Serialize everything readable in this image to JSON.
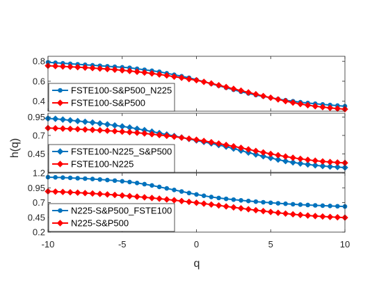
{
  "chart_data": [
    {
      "type": "line",
      "panel": "top",
      "xlim": [
        -10,
        10
      ],
      "ylim": [
        0.3,
        0.85
      ],
      "yticks": [
        "0.4",
        "0.6",
        "0.8"
      ],
      "x": [
        -10,
        -9.5,
        -9,
        -8.5,
        -8,
        -7.5,
        -7,
        -6.5,
        -6,
        -5.5,
        -5,
        -4.5,
        -4,
        -3.5,
        -3,
        -2.5,
        -2,
        -1.5,
        -1,
        -0.5,
        0,
        0.5,
        1,
        1.5,
        2,
        2.5,
        3,
        3.5,
        4,
        4.5,
        5,
        5.5,
        6,
        6.5,
        7,
        7.5,
        8,
        8.5,
        9,
        9.5,
        10
      ],
      "legend_position": "bottom-left",
      "series": [
        {
          "name": "FSTE100-S&P500_N225",
          "color": "#0072bd",
          "marker": "circle",
          "values": [
            0.79,
            0.785,
            0.78,
            0.775,
            0.77,
            0.765,
            0.76,
            0.755,
            0.75,
            0.745,
            0.74,
            0.735,
            0.725,
            0.715,
            0.705,
            0.695,
            0.68,
            0.665,
            0.65,
            0.635,
            0.615,
            0.595,
            0.575,
            0.555,
            0.535,
            0.515,
            0.495,
            0.478,
            0.462,
            0.448,
            0.435,
            0.422,
            0.41,
            0.4,
            0.39,
            0.382,
            0.375,
            0.368,
            0.362,
            0.356,
            0.35
          ]
        },
        {
          "name": "FSTE100-S&P500",
          "color": "#ff0000",
          "marker": "diamond",
          "values": [
            0.755,
            0.752,
            0.748,
            0.745,
            0.741,
            0.737,
            0.732,
            0.727,
            0.722,
            0.716,
            0.71,
            0.703,
            0.695,
            0.687,
            0.678,
            0.668,
            0.658,
            0.646,
            0.635,
            0.622,
            0.61,
            0.594,
            0.578,
            0.56,
            0.542,
            0.524,
            0.506,
            0.488,
            0.47,
            0.452,
            0.435,
            0.418,
            0.401,
            0.386,
            0.372,
            0.36,
            0.35,
            0.341,
            0.333,
            0.326,
            0.32
          ]
        }
      ]
    },
    {
      "type": "line",
      "panel": "middle",
      "xlim": [
        -10,
        10
      ],
      "ylim": [
        0.2,
        1.0
      ],
      "yticks": [
        "0.45",
        "0.7",
        "0.95"
      ],
      "x": [
        -10,
        -9.5,
        -9,
        -8.5,
        -8,
        -7.5,
        -7,
        -6.5,
        -6,
        -5.5,
        -5,
        -4.5,
        -4,
        -3.5,
        -3,
        -2.5,
        -2,
        -1.5,
        -1,
        -0.5,
        0,
        0.5,
        1,
        1.5,
        2,
        2.5,
        3,
        3.5,
        4,
        4.5,
        5,
        5.5,
        6,
        6.5,
        7,
        7.5,
        8,
        8.5,
        9,
        9.5,
        10
      ],
      "legend_position": "bottom-left",
      "series": [
        {
          "name": "FSTE100-N225_S&P500",
          "color": "#0072bd",
          "marker": "diamond",
          "values": [
            0.93,
            0.925,
            0.915,
            0.905,
            0.895,
            0.885,
            0.875,
            0.862,
            0.85,
            0.836,
            0.822,
            0.808,
            0.79,
            0.772,
            0.752,
            0.732,
            0.712,
            0.692,
            0.672,
            0.652,
            0.632,
            0.612,
            0.592,
            0.57,
            0.548,
            0.522,
            0.495,
            0.468,
            0.442,
            0.418,
            0.395,
            0.372,
            0.352,
            0.335,
            0.32,
            0.307,
            0.295,
            0.286,
            0.278,
            0.272,
            0.265
          ]
        },
        {
          "name": "FSTE100-N225",
          "color": "#ff0000",
          "marker": "diamond",
          "values": [
            0.8,
            0.797,
            0.793,
            0.789,
            0.785,
            0.78,
            0.775,
            0.77,
            0.764,
            0.758,
            0.751,
            0.744,
            0.736,
            0.727,
            0.717,
            0.706,
            0.695,
            0.683,
            0.67,
            0.656,
            0.641,
            0.625,
            0.608,
            0.59,
            0.571,
            0.552,
            0.532,
            0.511,
            0.49,
            0.47,
            0.45,
            0.432,
            0.414,
            0.398,
            0.383,
            0.37,
            0.358,
            0.348,
            0.34,
            0.333,
            0.328
          ]
        }
      ]
    },
    {
      "type": "line",
      "panel": "bottom",
      "xlim": [
        -10,
        10
      ],
      "ylim": [
        0.2,
        1.2
      ],
      "yticks": [
        "0.2",
        "0.45",
        "0.7",
        "0.95",
        "1.2"
      ],
      "x": [
        -10,
        -9.5,
        -9,
        -8.5,
        -8,
        -7.5,
        -7,
        -6.5,
        -6,
        -5.5,
        -5,
        -4.5,
        -4,
        -3.5,
        -3,
        -2.5,
        -2,
        -1.5,
        -1,
        -0.5,
        0,
        0.5,
        1,
        1.5,
        2,
        2.5,
        3,
        3.5,
        4,
        4.5,
        5,
        5.5,
        6,
        6.5,
        7,
        7.5,
        8,
        8.5,
        9,
        9.5,
        10
      ],
      "legend_position": "bottom-left",
      "series": [
        {
          "name": "N225-S&P500_FSTE100",
          "color": "#0072bd",
          "marker": "circle",
          "values": [
            1.13,
            1.127,
            1.123,
            1.118,
            1.112,
            1.106,
            1.099,
            1.091,
            1.082,
            1.072,
            1.061,
            1.048,
            1.032,
            1.012,
            0.99,
            0.965,
            0.94,
            0.914,
            0.888,
            0.862,
            0.838,
            0.815,
            0.795,
            0.778,
            0.763,
            0.75,
            0.738,
            0.727,
            0.716,
            0.706,
            0.697,
            0.688,
            0.68,
            0.672,
            0.665,
            0.659,
            0.653,
            0.648,
            0.643,
            0.638,
            0.634
          ]
        },
        {
          "name": "N225-S&P500",
          "color": "#ff0000",
          "marker": "diamond",
          "values": [
            0.89,
            0.885,
            0.88,
            0.874,
            0.868,
            0.861,
            0.854,
            0.846,
            0.838,
            0.829,
            0.82,
            0.81,
            0.8,
            0.789,
            0.778,
            0.766,
            0.753,
            0.74,
            0.726,
            0.712,
            0.697,
            0.682,
            0.667,
            0.651,
            0.635,
            0.619,
            0.603,
            0.587,
            0.571,
            0.556,
            0.541,
            0.527,
            0.514,
            0.502,
            0.491,
            0.481,
            0.472,
            0.464,
            0.457,
            0.451,
            0.446
          ]
        }
      ]
    }
  ],
  "axes": {
    "xlabel": "q",
    "ylabel": "h(q)",
    "xticks": [
      "-10",
      "-5",
      "0",
      "5",
      "10"
    ],
    "xtick_values": [
      -10,
      -5,
      0,
      5,
      10
    ]
  }
}
